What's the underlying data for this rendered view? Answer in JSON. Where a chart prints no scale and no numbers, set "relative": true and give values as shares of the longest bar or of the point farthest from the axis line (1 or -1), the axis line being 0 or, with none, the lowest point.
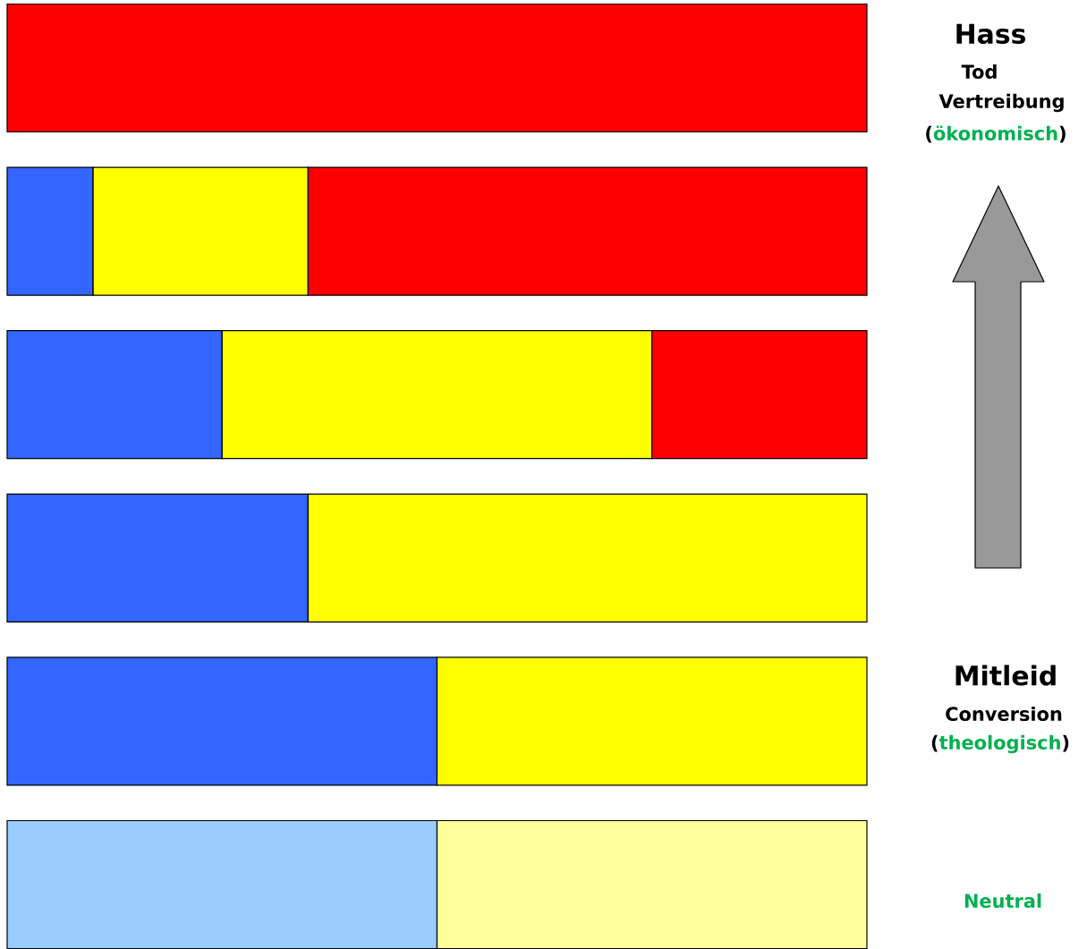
{
  "chart_data": {
    "type": "bar",
    "orientation": "horizontal",
    "stacked": true,
    "relative": true,
    "categories": [
      null,
      null,
      null,
      null,
      null,
      null
    ],
    "series": [
      {
        "color": "#3366ff",
        "colors": [
          null,
          null,
          null,
          null,
          null,
          "#99ccff"
        ],
        "values": [
          0,
          0.1,
          0.25,
          0.35,
          0.5,
          0.5
        ]
      },
      {
        "color": "#ffff00",
        "colors": [
          null,
          null,
          null,
          null,
          null,
          "#ffff99"
        ],
        "values": [
          0,
          0.25,
          0.5,
          0.65,
          0.5,
          0.5
        ]
      },
      {
        "color": "#ff0000",
        "values": [
          1,
          0.65,
          0.25,
          0,
          0,
          0
        ]
      }
    ],
    "annotations": [
      "Hass",
      "Tod",
      "Vertreibung",
      "(",
      "ökonomisch",
      ")",
      "Mitleid",
      "Conversion",
      "(",
      "theologisch",
      ")",
      "Neutral"
    ]
  }
}
